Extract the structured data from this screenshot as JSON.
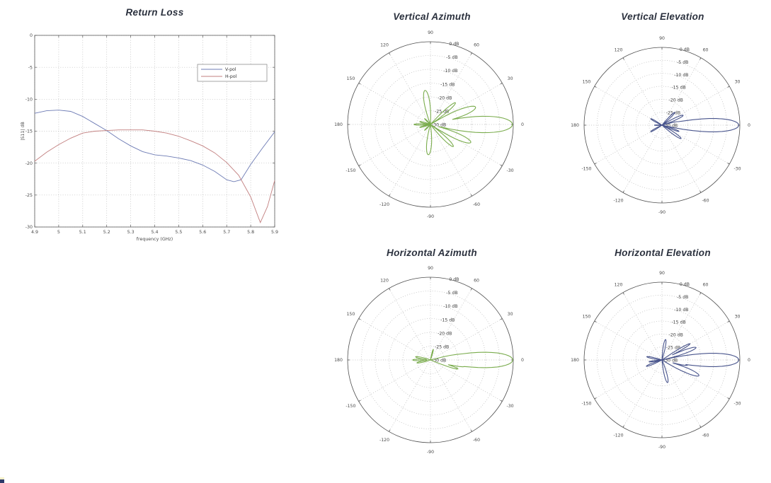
{
  "page": {
    "background": "#ffffff"
  },
  "chart_data": [
    {
      "id": "return-loss",
      "type": "line",
      "title": "Return Loss",
      "xlabel": "frequency (GHz)",
      "ylabel": "|S11| dB",
      "xlim": [
        4.9,
        5.9
      ],
      "ylim": [
        -30,
        0
      ],
      "xticks": [
        "4.9",
        "5",
        "5.1",
        "5.2",
        "5.3",
        "5.4",
        "5.5",
        "5.6",
        "5.7",
        "5.8",
        "5.9"
      ],
      "yticks": [
        "0",
        "-5",
        "-10",
        "-15",
        "-20",
        "-25",
        "-30"
      ],
      "grid": "dotted",
      "legend": {
        "position": "upper-right-inside",
        "entries": [
          "V-pol",
          "H-pol"
        ]
      },
      "series": [
        {
          "name": "V-pol",
          "color": "#6d7bb4",
          "x": [
            4.9,
            4.95,
            5.0,
            5.05,
            5.1,
            5.15,
            5.2,
            5.25,
            5.3,
            5.35,
            5.4,
            5.45,
            5.5,
            5.55,
            5.6,
            5.65,
            5.7,
            5.73,
            5.76,
            5.8,
            5.85,
            5.9
          ],
          "y": [
            -12.2,
            -11.8,
            -11.7,
            -11.9,
            -12.7,
            -13.8,
            -14.9,
            -16.2,
            -17.3,
            -18.2,
            -18.7,
            -18.9,
            -19.2,
            -19.6,
            -20.3,
            -21.3,
            -22.6,
            -22.9,
            -22.6,
            -20.2,
            -17.6,
            -15.1
          ]
        },
        {
          "name": "H-pol",
          "color": "#c27f7f",
          "x": [
            4.9,
            4.95,
            5.0,
            5.05,
            5.1,
            5.15,
            5.2,
            5.25,
            5.3,
            5.35,
            5.4,
            5.45,
            5.5,
            5.55,
            5.6,
            5.65,
            5.7,
            5.75,
            5.8,
            5.84,
            5.87,
            5.9
          ],
          "y": [
            -19.7,
            -18.3,
            -17.1,
            -16.1,
            -15.3,
            -15.0,
            -14.9,
            -14.8,
            -14.8,
            -14.8,
            -15.0,
            -15.3,
            -15.8,
            -16.5,
            -17.3,
            -18.4,
            -19.9,
            -21.9,
            -25.3,
            -29.3,
            -26.8,
            -22.7
          ]
        }
      ]
    },
    {
      "id": "vertical-azimuth",
      "type": "polar",
      "title": "Vertical Azimuth",
      "color": "#7aac4d",
      "min_db": -30,
      "db_rings": [
        0,
        -5,
        -10,
        -15,
        -20,
        -25,
        -30
      ],
      "db_labels": [
        "0 dB",
        "-5 dB",
        "-10 dB",
        "-15 dB",
        "-20 dB",
        "-25 dB",
        "-30 dB"
      ],
      "angle_ticks_deg": [
        0,
        30,
        60,
        90,
        120,
        150,
        180,
        -150,
        -120,
        -90,
        -60,
        -30
      ],
      "lobes": [
        {
          "angle_deg": 0,
          "peak_db": -0.3,
          "null_halfwidth_deg": 15
        },
        {
          "angle_deg": 21,
          "peak_db": -12.5,
          "null_halfwidth_deg": 11
        },
        {
          "angle_deg": 41,
          "peak_db": -18,
          "null_halfwidth_deg": 7
        },
        {
          "angle_deg": 99,
          "peak_db": -17.5,
          "null_halfwidth_deg": 12
        },
        {
          "angle_deg": -24,
          "peak_db": -14,
          "null_halfwidth_deg": 10
        },
        {
          "angle_deg": -44,
          "peak_db": -18.5,
          "null_halfwidth_deg": 8
        },
        {
          "angle_deg": -94,
          "peak_db": -19,
          "null_halfwidth_deg": 12
        },
        {
          "angle_deg": 165,
          "peak_db": -26,
          "null_halfwidth_deg": 7
        },
        {
          "angle_deg": 180,
          "peak_db": -24,
          "null_halfwidth_deg": 6
        },
        {
          "angle_deg": -165,
          "peak_db": -26,
          "null_halfwidth_deg": 6
        },
        {
          "angle_deg": 135,
          "peak_db": -27,
          "null_halfwidth_deg": 5
        },
        {
          "angle_deg": -135,
          "peak_db": -27,
          "null_halfwidth_deg": 5
        }
      ]
    },
    {
      "id": "vertical-elevation",
      "type": "polar",
      "title": "Vertical Elevation",
      "color": "#48548c",
      "min_db": -30,
      "db_rings": [
        0,
        -5,
        -10,
        -15,
        -20,
        -25,
        -30
      ],
      "db_labels": [
        "0 dB",
        "-5 dB",
        "-10 dB",
        "-15 dB",
        "-20 dB",
        "-25 dB",
        "-30 dB"
      ],
      "angle_ticks_deg": [
        0,
        30,
        60,
        90,
        120,
        150,
        180,
        -150,
        -120,
        -90,
        -60,
        -30
      ],
      "lobes": [
        {
          "angle_deg": 0,
          "peak_db": -0.4,
          "null_halfwidth_deg": 13
        },
        {
          "angle_deg": 25,
          "peak_db": -21,
          "null_halfwidth_deg": 7
        },
        {
          "angle_deg": 45,
          "peak_db": -23,
          "null_halfwidth_deg": 6
        },
        {
          "angle_deg": 12,
          "peak_db": -23.5,
          "null_halfwidth_deg": 4
        },
        {
          "angle_deg": -20,
          "peak_db": -23,
          "null_halfwidth_deg": 5
        },
        {
          "angle_deg": -35,
          "peak_db": -21,
          "null_halfwidth_deg": 7
        },
        {
          "angle_deg": 150,
          "peak_db": -25,
          "null_halfwidth_deg": 6
        },
        {
          "angle_deg": -150,
          "peak_db": -25,
          "null_halfwidth_deg": 6
        },
        {
          "angle_deg": 180,
          "peak_db": -27,
          "null_halfwidth_deg": 4
        }
      ]
    },
    {
      "id": "horizontal-azimuth",
      "type": "polar",
      "title": "Horizontal Azimuth",
      "color": "#7aac4d",
      "min_db": -30,
      "db_rings": [
        0,
        -5,
        -10,
        -15,
        -20,
        -25,
        -30
      ],
      "db_labels": [
        "0 dB",
        "-5 dB",
        "-10 dB",
        "-15 dB",
        "-20 dB",
        "-25 dB",
        "-30 dB"
      ],
      "angle_ticks_deg": [
        0,
        30,
        60,
        90,
        120,
        150,
        180,
        -150,
        -120,
        -90,
        -60,
        -30
      ],
      "lobes": [
        {
          "angle_deg": 0,
          "peak_db": -0.2,
          "null_halfwidth_deg": 14
        },
        {
          "angle_deg": 10,
          "peak_db": -18.5,
          "null_halfwidth_deg": 5
        },
        {
          "angle_deg": -11,
          "peak_db": -17.5,
          "null_halfwidth_deg": 5
        },
        {
          "angle_deg": -18,
          "peak_db": -19.5,
          "null_halfwidth_deg": 5
        },
        {
          "angle_deg": 75,
          "peak_db": -26,
          "null_halfwidth_deg": 5
        },
        {
          "angle_deg": 168,
          "peak_db": -24.5,
          "null_halfwidth_deg": 7
        },
        {
          "angle_deg": 180,
          "peak_db": -23.5,
          "null_halfwidth_deg": 6
        },
        {
          "angle_deg": -168,
          "peak_db": -25,
          "null_halfwidth_deg": 7
        }
      ]
    },
    {
      "id": "horizontal-elevation",
      "type": "polar",
      "title": "Horizontal Elevation",
      "color": "#48548c",
      "min_db": -30,
      "db_rings": [
        0,
        -5,
        -10,
        -15,
        -20,
        -25,
        -30
      ],
      "db_labels": [
        "0 dB",
        "-5 dB",
        "-10 dB",
        "-15 dB",
        "-20 dB",
        "-25 dB",
        "-30 dB"
      ],
      "angle_ticks_deg": [
        0,
        30,
        60,
        90,
        120,
        150,
        180,
        -150,
        -120,
        -90,
        -60,
        -30
      ],
      "lobes": [
        {
          "angle_deg": 0,
          "peak_db": -0.4,
          "null_halfwidth_deg": 13
        },
        {
          "angle_deg": 20,
          "peak_db": -16,
          "null_halfwidth_deg": 7
        },
        {
          "angle_deg": 30,
          "peak_db": -17.5,
          "null_halfwidth_deg": 5
        },
        {
          "angle_deg": -23,
          "peak_db": -14.5,
          "null_halfwidth_deg": 9
        },
        {
          "angle_deg": -12,
          "peak_db": -20,
          "null_halfwidth_deg": 4
        },
        {
          "angle_deg": 80,
          "peak_db": -22,
          "null_halfwidth_deg": 8
        },
        {
          "angle_deg": -76,
          "peak_db": -21,
          "null_halfwidth_deg": 9
        },
        {
          "angle_deg": 168,
          "peak_db": -24,
          "null_halfwidth_deg": 6
        },
        {
          "angle_deg": -158,
          "peak_db": -23.5,
          "null_halfwidth_deg": 6
        },
        {
          "angle_deg": -172,
          "peak_db": -25,
          "null_halfwidth_deg": 5
        }
      ]
    }
  ]
}
